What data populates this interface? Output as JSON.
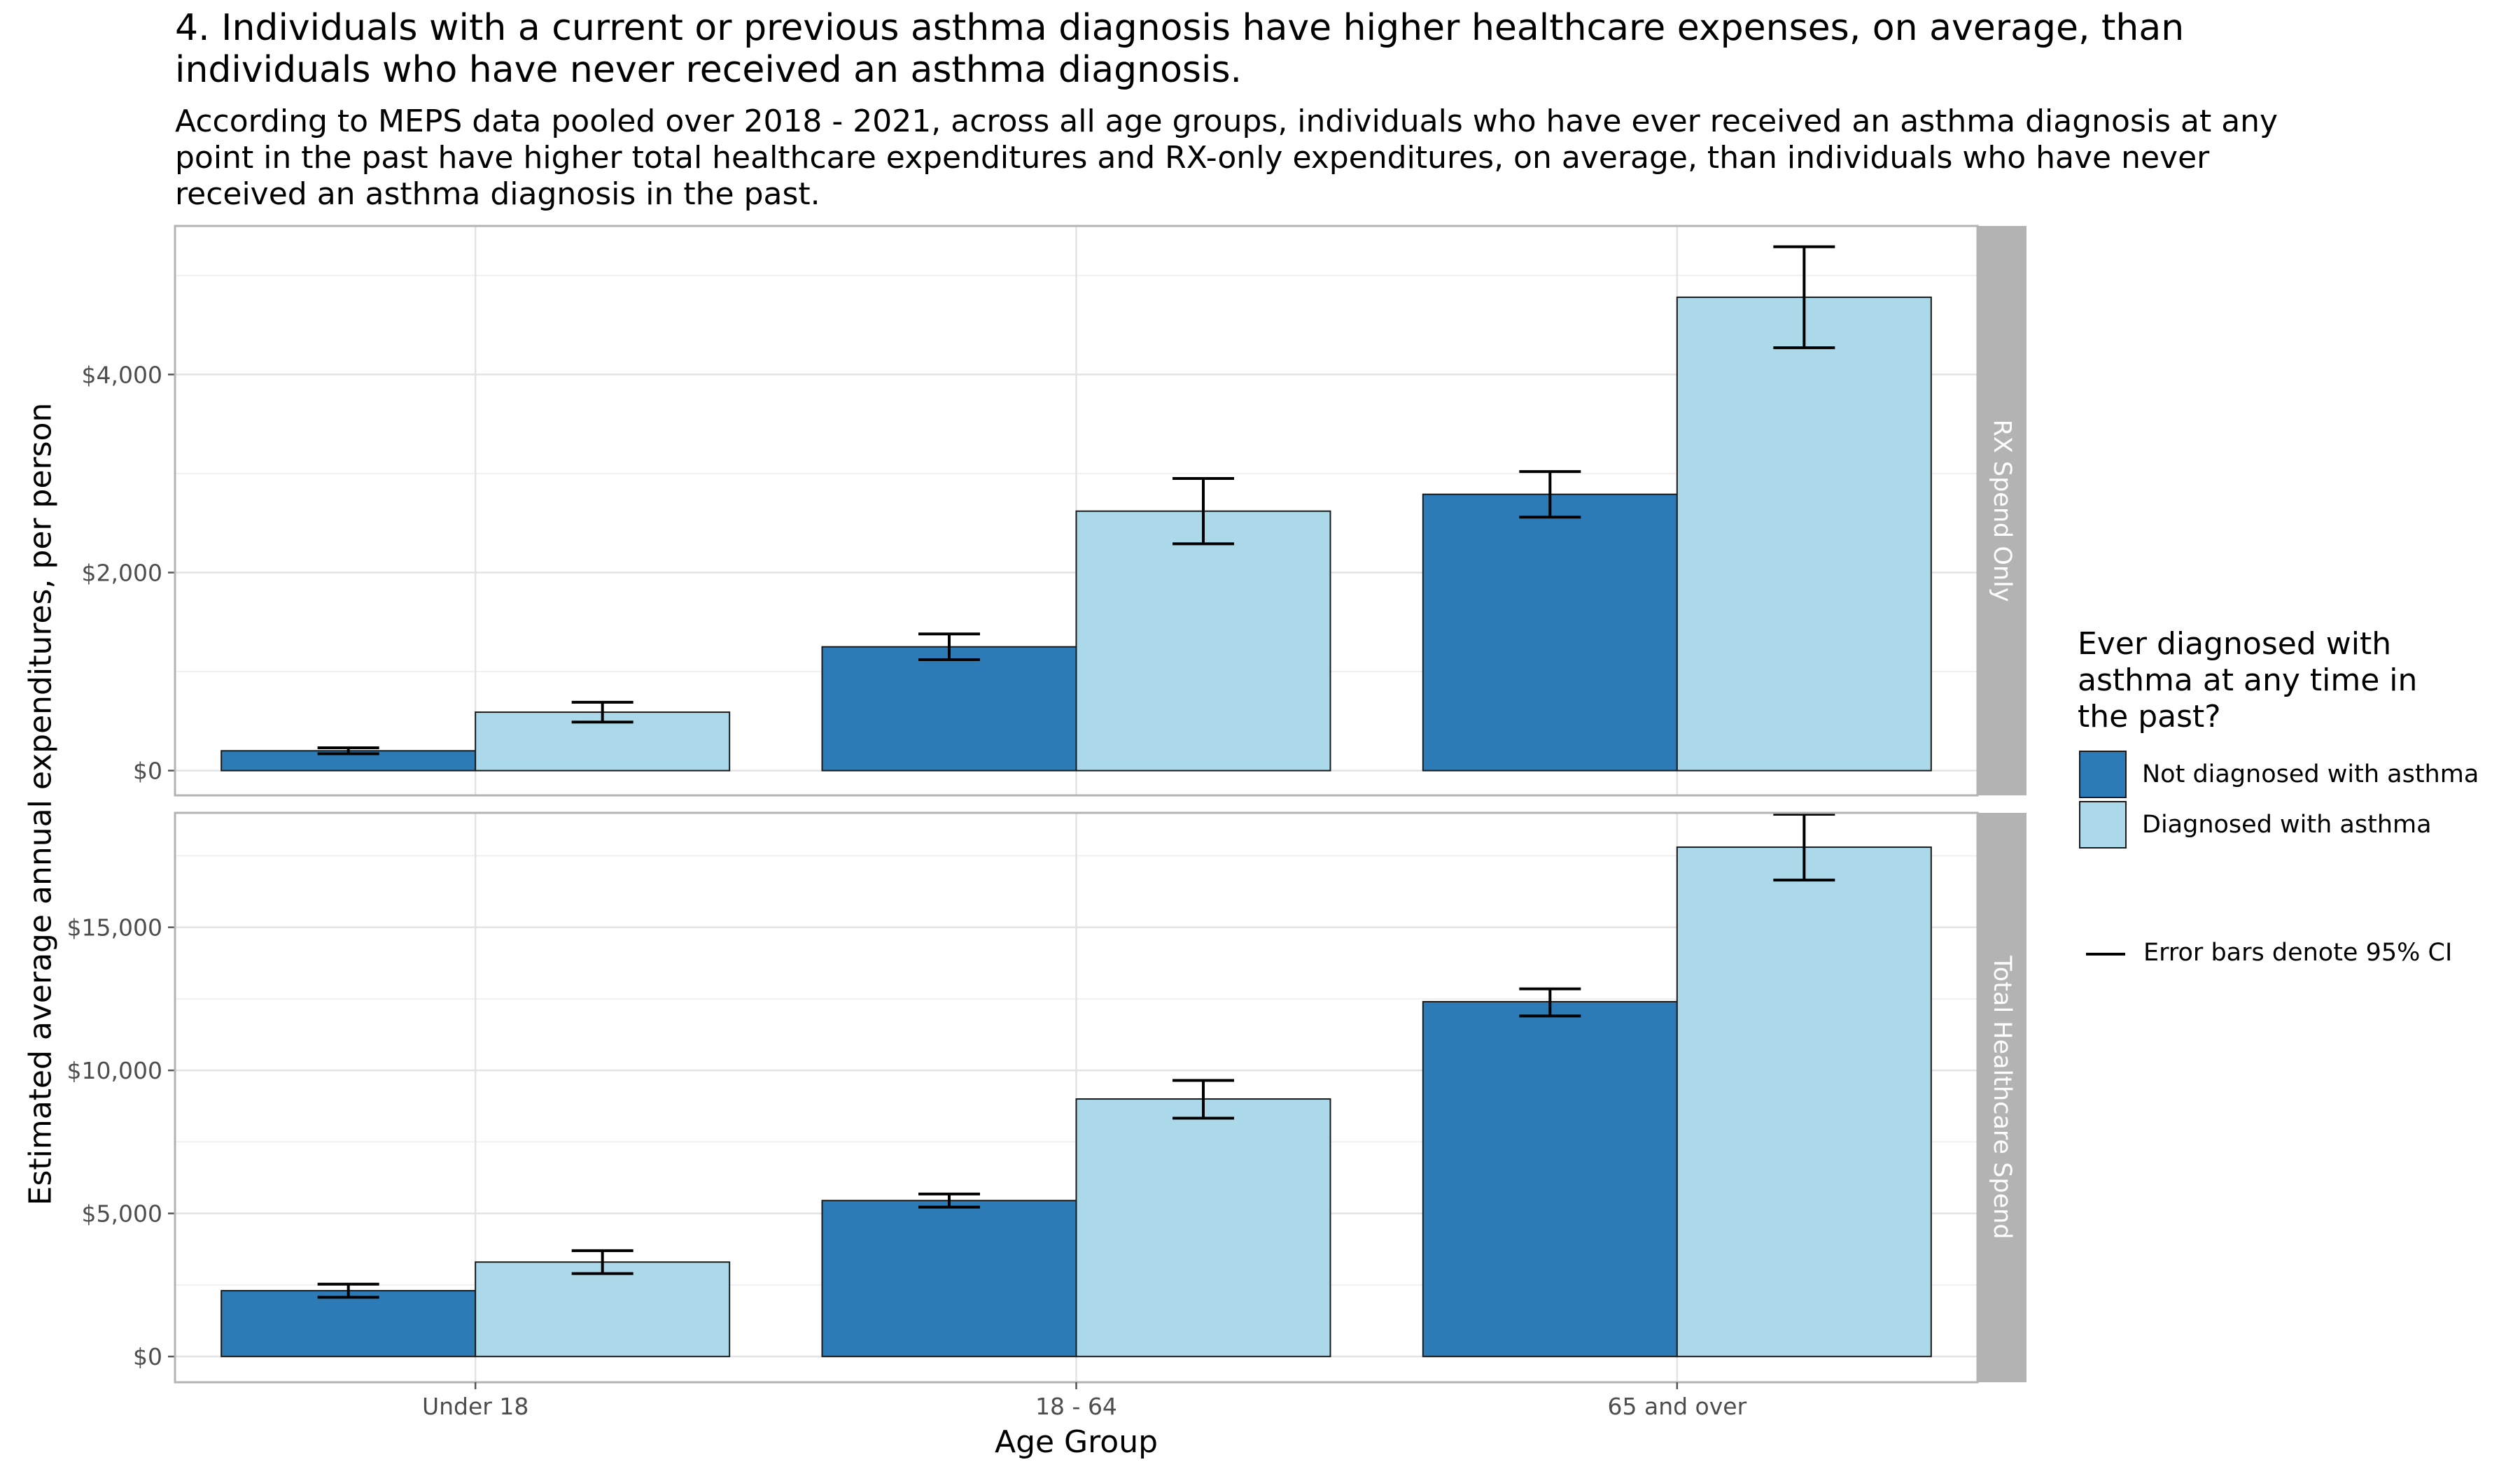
{
  "title": "4. Individuals with a current or previous asthma diagnosis have higher healthcare expenses, on average, than individuals who have never received an asthma diagnosis.",
  "subtitle": "According to MEPS data pooled over 2018 - 2021, across all age groups, individuals who have ever received an asthma diagnosis at any point in the past have higher total healthcare expenditures and RX-only expenditures, on average, than individuals who have never received an asthma diagnosis in the past.",
  "legend": {
    "title": "Ever diagnosed with asthma at any time in the past?",
    "items": [
      {
        "label": "Not diagnosed with asthma",
        "color": "#2c7bb6"
      },
      {
        "label": "Diagnosed with asthma",
        "color": "#abd9e9"
      }
    ],
    "ci_note": "Error bars denote 95% CI"
  },
  "chart_data": {
    "type": "bar",
    "xlabel": "Age Group",
    "ylabel": "Estimated average annual expenditures, per person",
    "categories": [
      "Under 18",
      "18 - 64",
      "65 and over"
    ],
    "grid": true,
    "legend_position": "right",
    "panels": [
      {
        "strip": "RX Spend Only",
        "ylim": [
          -250,
          5500
        ],
        "yticks": [
          0,
          2000,
          4000
        ],
        "ytick_labels": [
          "$0",
          "$2,000",
          "$4,000"
        ],
        "series": [
          {
            "name": "Not diagnosed with asthma",
            "color": "#2c7bb6",
            "values": [
              200,
              1250,
              2790
            ],
            "ci_low": [
              170,
              1120,
              2560
            ],
            "ci_high": [
              230,
              1380,
              3020
            ]
          },
          {
            "name": "Diagnosed with asthma",
            "color": "#abd9e9",
            "values": [
              590,
              2620,
              4780
            ],
            "ci_low": [
              490,
              2290,
              4270
            ],
            "ci_high": [
              690,
              2950,
              5290
            ]
          }
        ]
      },
      {
        "strip": "Total Healthcare Spend",
        "ylim": [
          -900,
          19000
        ],
        "yticks": [
          0,
          5000,
          10000,
          15000
        ],
        "ytick_labels": [
          "$0",
          "$5,000",
          "$10,000",
          "$15,000"
        ],
        "series": [
          {
            "name": "Not diagnosed with asthma",
            "color": "#2c7bb6",
            "values": [
              2300,
              5450,
              12400
            ],
            "ci_low": [
              2070,
              5220,
              11900
            ],
            "ci_high": [
              2530,
              5680,
              12850
            ]
          },
          {
            "name": "Diagnosed with asthma",
            "color": "#abd9e9",
            "values": [
              3300,
              9000,
              17800
            ],
            "ci_low": [
              2900,
              8330,
              16650
            ],
            "ci_high": [
              3700,
              9650,
              18950
            ]
          }
        ]
      }
    ]
  }
}
